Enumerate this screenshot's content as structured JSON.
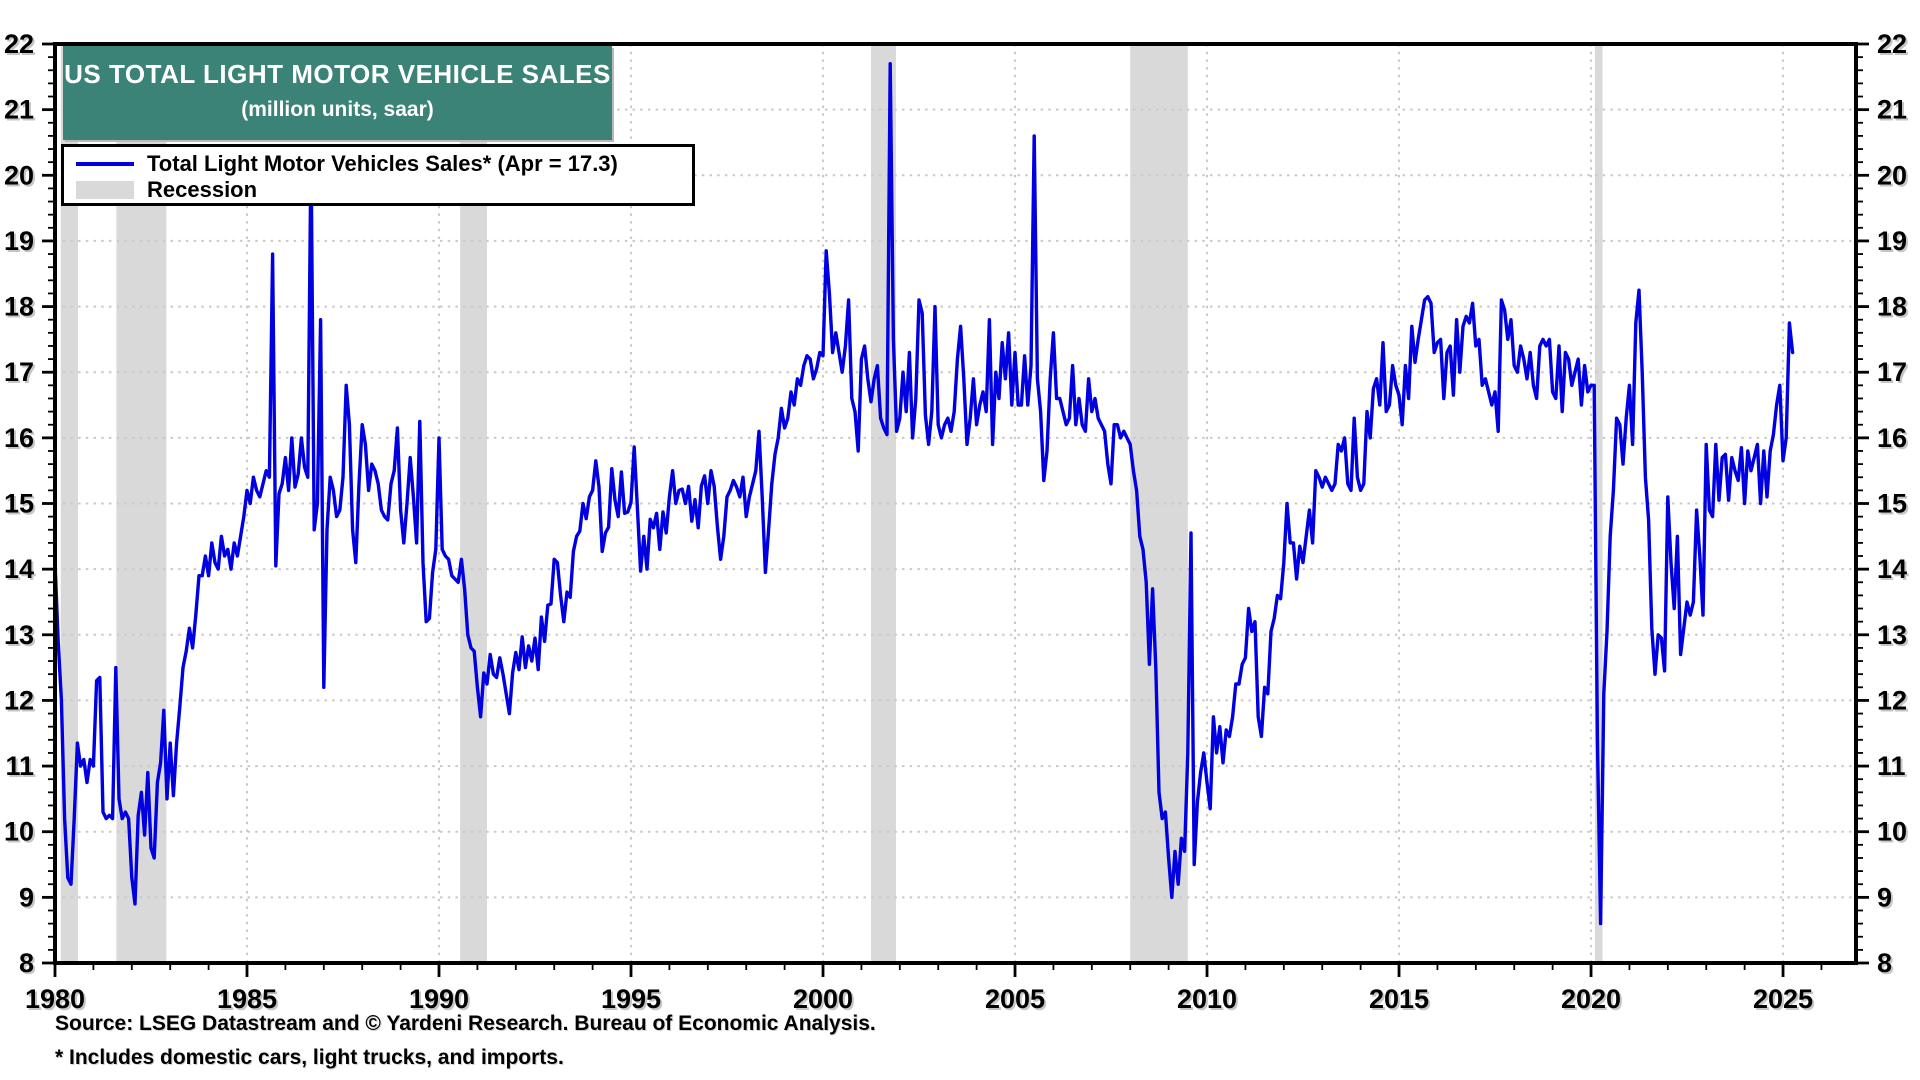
{
  "title": {
    "line1": "US TOTAL LIGHT MOTOR VEHICLE SALES",
    "line2": "(million units, saar)"
  },
  "legend": {
    "series_label": "Total Light Motor Vehicles Sales* (Apr = 17.3)",
    "recession_label": "Recession"
  },
  "footer": {
    "source": "Source: LSEG Datastream and © Yardeni Research. Bureau of Economic Analysis.",
    "footnote": "* Includes domestic cars, light trucks, and imports."
  },
  "colors": {
    "line": "#0000e0",
    "recession_band": "#d9d9d9",
    "grid": "#c9c9c9",
    "frame": "#000000",
    "title_bg": "#3a8376",
    "title_fg": "#ffffff",
    "tick_label": "#000000"
  },
  "chart_data": {
    "type": "line",
    "title": "US TOTAL LIGHT MOTOR VEHICLE SALES (million units, saar)",
    "xlabel": "",
    "ylabel": "million units, saar",
    "xlim": [
      1980,
      2026.9
    ],
    "ylim": [
      8,
      22
    ],
    "x_ticks": [
      1980,
      1985,
      1990,
      1995,
      2000,
      2005,
      2010,
      2015,
      2020,
      2025
    ],
    "y_ticks": [
      8,
      9,
      10,
      11,
      12,
      13,
      14,
      15,
      16,
      17,
      18,
      19,
      20,
      21,
      22
    ],
    "y_minor_step": 0.2,
    "x_minor_step": 1,
    "grid": "dotted, both axes at major ticks",
    "legend_position": "top-left",
    "last_point": {
      "month": "Apr",
      "year": 2025,
      "value": 17.3
    },
    "recessions": [
      [
        1980.15,
        1980.6
      ],
      [
        1981.6,
        1982.9
      ],
      [
        1990.55,
        1991.25
      ],
      [
        2001.25,
        2001.9
      ],
      [
        2008.0,
        2009.5
      ],
      [
        2020.1,
        2020.3
      ]
    ],
    "series": [
      {
        "name": "Total Light Motor Vehicles Sales* (Apr = 17.3)",
        "start_year": 1980,
        "points_per_year": 12,
        "values": [
          14.1,
          12.9,
          12.0,
          10.2,
          9.3,
          9.2,
          10.2,
          11.35,
          11.0,
          11.1,
          10.75,
          11.1,
          11.0,
          12.3,
          12.35,
          10.3,
          10.2,
          10.25,
          10.2,
          12.5,
          10.5,
          10.2,
          10.3,
          10.2,
          9.3,
          8.9,
          10.25,
          10.6,
          9.95,
          10.9,
          9.75,
          9.6,
          10.75,
          11.05,
          11.85,
          10.5,
          11.35,
          10.55,
          11.35,
          11.9,
          12.5,
          12.75,
          13.1,
          12.8,
          13.3,
          13.9,
          13.9,
          14.2,
          13.9,
          14.4,
          14.1,
          14.0,
          14.5,
          14.2,
          14.3,
          14.0,
          14.4,
          14.2,
          14.5,
          14.8,
          15.2,
          15.0,
          15.4,
          15.2,
          15.1,
          15.3,
          15.5,
          15.4,
          18.8,
          14.05,
          15.15,
          15.3,
          15.7,
          15.2,
          16.0,
          15.25,
          15.45,
          16.0,
          15.55,
          15.4,
          20.4,
          14.6,
          15.0,
          17.8,
          12.2,
          14.6,
          15.4,
          15.2,
          14.8,
          14.9,
          15.4,
          16.8,
          16.2,
          14.6,
          14.1,
          15.3,
          16.2,
          15.9,
          15.2,
          15.6,
          15.5,
          15.3,
          14.9,
          14.8,
          14.75,
          15.3,
          15.5,
          16.15,
          14.9,
          14.4,
          15.0,
          15.7,
          15.1,
          14.4,
          16.25,
          14.1,
          13.2,
          13.25,
          13.95,
          14.3,
          16.0,
          14.3,
          14.2,
          14.15,
          13.9,
          13.85,
          13.8,
          14.15,
          13.7,
          13.0,
          12.8,
          12.75,
          12.2,
          11.75,
          12.42,
          12.25,
          12.7,
          12.4,
          12.35,
          12.65,
          12.4,
          12.1,
          11.8,
          12.42,
          12.73,
          12.47,
          12.97,
          12.5,
          12.83,
          12.6,
          12.95,
          12.47,
          13.27,
          12.9,
          13.45,
          13.47,
          14.15,
          14.1,
          13.6,
          13.2,
          13.65,
          13.57,
          14.27,
          14.5,
          14.58,
          15.0,
          14.77,
          15.1,
          15.2,
          15.65,
          15.25,
          14.27,
          14.55,
          14.64,
          15.53,
          15.05,
          14.8,
          15.48,
          14.85,
          14.87,
          15.02,
          15.86,
          14.93,
          13.97,
          14.5,
          14.0,
          14.76,
          14.63,
          14.85,
          14.3,
          14.87,
          14.55,
          15.1,
          15.5,
          15.0,
          15.2,
          15.22,
          15.0,
          15.26,
          14.73,
          15.06,
          14.63,
          15.27,
          15.42,
          15.0,
          15.5,
          15.26,
          14.65,
          14.15,
          14.5,
          15.1,
          15.2,
          15.35,
          15.25,
          15.1,
          15.4,
          14.8,
          15.1,
          15.3,
          15.5,
          16.1,
          15.1,
          13.95,
          14.6,
          15.3,
          15.75,
          16.0,
          16.45,
          16.15,
          16.3,
          16.7,
          16.5,
          16.9,
          16.8,
          17.1,
          17.25,
          17.2,
          16.9,
          17.05,
          17.3,
          17.25,
          18.85,
          18.2,
          17.3,
          17.6,
          17.3,
          17.0,
          17.4,
          18.1,
          16.6,
          16.4,
          15.8,
          17.2,
          17.4,
          16.9,
          16.55,
          16.9,
          17.1,
          16.3,
          16.15,
          16.05,
          21.7,
          17.5,
          16.1,
          16.3,
          17.0,
          16.4,
          17.3,
          16.0,
          16.6,
          18.1,
          17.9,
          16.35,
          15.9,
          16.4,
          18.0,
          16.2,
          16.0,
          16.2,
          16.3,
          16.1,
          16.4,
          17.2,
          17.7,
          16.9,
          15.9,
          16.3,
          16.9,
          16.2,
          16.5,
          16.7,
          16.4,
          17.8,
          15.9,
          17.0,
          16.6,
          17.45,
          16.9,
          17.6,
          16.5,
          17.3,
          16.5,
          16.5,
          17.25,
          16.5,
          17.1,
          20.6,
          16.9,
          16.4,
          15.35,
          15.8,
          16.9,
          17.6,
          16.6,
          16.6,
          16.4,
          16.2,
          16.3,
          17.1,
          16.2,
          16.6,
          16.2,
          16.1,
          16.9,
          16.4,
          16.6,
          16.3,
          16.2,
          16.1,
          15.6,
          15.3,
          16.2,
          16.2,
          16.0,
          16.1,
          16.0,
          15.9,
          15.5,
          15.2,
          14.5,
          14.3,
          13.8,
          12.55,
          13.7,
          12.5,
          10.6,
          10.2,
          10.3,
          9.6,
          9.0,
          9.7,
          9.2,
          9.9,
          9.7,
          11.2,
          14.55,
          9.5,
          10.45,
          10.9,
          11.2,
          10.75,
          10.35,
          11.75,
          11.2,
          11.6,
          11.05,
          11.55,
          11.45,
          11.75,
          12.25,
          12.25,
          12.55,
          12.65,
          13.4,
          13.05,
          13.2,
          11.75,
          11.45,
          12.2,
          12.1,
          13.05,
          13.25,
          13.6,
          13.55,
          14.1,
          15.0,
          14.4,
          14.4,
          13.85,
          14.35,
          14.1,
          14.5,
          14.9,
          14.4,
          15.5,
          15.4,
          15.25,
          15.4,
          15.3,
          15.2,
          15.3,
          15.9,
          15.8,
          16.0,
          15.3,
          15.2,
          16.3,
          15.4,
          15.2,
          15.3,
          16.4,
          16.0,
          16.75,
          16.9,
          16.5,
          17.45,
          16.4,
          16.5,
          17.1,
          16.8,
          16.65,
          16.2,
          17.1,
          16.6,
          17.7,
          17.15,
          17.5,
          17.8,
          18.1,
          18.15,
          18.05,
          17.3,
          17.45,
          17.5,
          16.6,
          17.3,
          17.4,
          16.65,
          17.8,
          17.0,
          17.7,
          17.85,
          17.75,
          18.05,
          17.4,
          17.5,
          16.8,
          16.9,
          16.7,
          16.5,
          16.7,
          16.1,
          18.1,
          17.95,
          17.5,
          17.8,
          17.1,
          17.0,
          17.4,
          17.2,
          16.9,
          17.3,
          16.8,
          16.6,
          17.4,
          17.5,
          17.4,
          17.5,
          16.7,
          16.6,
          17.4,
          16.4,
          17.3,
          17.2,
          16.8,
          17.0,
          17.2,
          16.5,
          17.1,
          16.7,
          16.8,
          16.8,
          11.4,
          8.6,
          12.1,
          13.05,
          14.5,
          15.2,
          16.3,
          16.2,
          15.6,
          16.3,
          16.8,
          15.9,
          17.75,
          18.25,
          17.0,
          15.4,
          14.75,
          13.1,
          12.4,
          13.0,
          12.95,
          12.45,
          15.1,
          14.1,
          13.4,
          14.5,
          12.7,
          13.1,
          13.5,
          13.3,
          13.5,
          14.9,
          14.2,
          13.3,
          15.9,
          14.9,
          14.8,
          15.9,
          15.05,
          15.7,
          15.75,
          15.05,
          15.7,
          15.5,
          15.35,
          15.85,
          15.0,
          15.8,
          15.5,
          15.7,
          15.9,
          15.0,
          15.8,
          15.1,
          15.8,
          16.05,
          16.5,
          16.8,
          15.65,
          16.0,
          17.75,
          17.3
        ]
      }
    ]
  }
}
